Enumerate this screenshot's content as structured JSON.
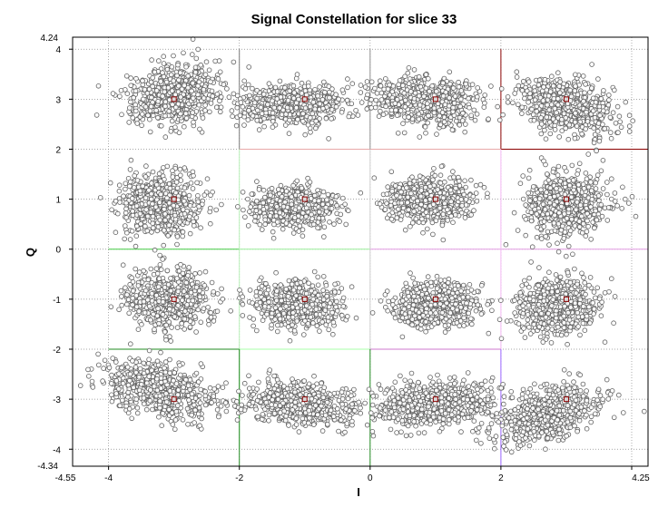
{
  "chart_data": {
    "type": "scatter",
    "title": "Signal Constellation for slice 33",
    "xlabel": "I",
    "ylabel": "Q",
    "xlim": [
      -4.55,
      4.25
    ],
    "ylim": [
      -4.34,
      4.24
    ],
    "xlim_labels": [
      "-4.55",
      "4.25"
    ],
    "ylim_labels": [
      "-4.34",
      "4.24"
    ],
    "xticks": [
      -4,
      -2,
      0,
      2,
      4
    ],
    "xtick_labels": [
      "-4",
      "-2",
      "0",
      "2",
      ""
    ],
    "yticks": [
      -4,
      -3,
      -2,
      -1,
      0,
      1,
      2,
      3,
      4
    ],
    "ytick_labels": [
      "-4",
      "-3",
      "-2",
      "-1",
      "0",
      "1",
      "2",
      "3",
      "4"
    ],
    "grid": true,
    "reference_points": {
      "i": [
        -3,
        -1,
        1,
        3
      ],
      "q": [
        -3,
        -1,
        1,
        3
      ],
      "color": "#8b0000"
    },
    "clusters": [
      {
        "i": -3.0,
        "q": 3.0,
        "spread_i": 0.35,
        "spread_q": 0.28,
        "rot": 0.35,
        "offset_i": 0.0,
        "offset_q": 0.1
      },
      {
        "i": -1.0,
        "q": 3.0,
        "spread_i": 0.38,
        "spread_q": 0.2,
        "rot": 0.05,
        "offset_i": -0.2,
        "offset_q": -0.1
      },
      {
        "i": 1.0,
        "q": 3.0,
        "spread_i": 0.38,
        "spread_q": 0.22,
        "rot": -0.15,
        "offset_i": -0.1,
        "offset_q": -0.05
      },
      {
        "i": 3.0,
        "q": 3.0,
        "spread_i": 0.38,
        "spread_q": 0.24,
        "rot": -0.45,
        "offset_i": 0.0,
        "offset_q": -0.15
      },
      {
        "i": -3.0,
        "q": 1.0,
        "spread_i": 0.3,
        "spread_q": 0.3,
        "rot": 0.2,
        "offset_i": -0.2,
        "offset_q": -0.1
      },
      {
        "i": -1.0,
        "q": 1.0,
        "spread_i": 0.3,
        "spread_q": 0.2,
        "rot": 0.0,
        "offset_i": -0.15,
        "offset_q": -0.15
      },
      {
        "i": 1.0,
        "q": 1.0,
        "spread_i": 0.32,
        "spread_q": 0.22,
        "rot": -0.05,
        "offset_i": -0.1,
        "offset_q": 0.0
      },
      {
        "i": 3.0,
        "q": 1.0,
        "spread_i": 0.3,
        "spread_q": 0.32,
        "rot": -0.2,
        "offset_i": 0.0,
        "offset_q": -0.1
      },
      {
        "i": -3.0,
        "q": -1.0,
        "spread_i": 0.3,
        "spread_q": 0.28,
        "rot": 0.1,
        "offset_i": -0.1,
        "offset_q": 0.0
      },
      {
        "i": -1.0,
        "q": -1.0,
        "spread_i": 0.32,
        "spread_q": 0.22,
        "rot": 0.0,
        "offset_i": -0.1,
        "offset_q": -0.1
      },
      {
        "i": 1.0,
        "q": -1.0,
        "spread_i": 0.3,
        "spread_q": 0.22,
        "rot": 0.15,
        "offset_i": 0.0,
        "offset_q": -0.1
      },
      {
        "i": 3.0,
        "q": -1.0,
        "spread_i": 0.3,
        "spread_q": 0.28,
        "rot": 0.25,
        "offset_i": -0.15,
        "offset_q": -0.1
      },
      {
        "i": -3.0,
        "q": -3.0,
        "spread_i": 0.42,
        "spread_q": 0.25,
        "rot": -0.45,
        "offset_i": -0.25,
        "offset_q": 0.2
      },
      {
        "i": -1.0,
        "q": -3.0,
        "spread_i": 0.42,
        "spread_q": 0.2,
        "rot": -0.12,
        "offset_i": -0.1,
        "offset_q": -0.1
      },
      {
        "i": 1.0,
        "q": -3.0,
        "spread_i": 0.42,
        "spread_q": 0.2,
        "rot": 0.08,
        "offset_i": 0.0,
        "offset_q": -0.1
      },
      {
        "i": 3.0,
        "q": -3.0,
        "spread_i": 0.42,
        "spread_q": 0.25,
        "rot": 0.45,
        "offset_i": -0.3,
        "offset_q": -0.3
      }
    ],
    "points_per_cluster": 650,
    "marker_color": "#5f5f5f",
    "decision_boundaries": [
      {
        "x1": 2,
        "y1": 4,
        "x2": 2,
        "y2": 2,
        "color": "#8b0000"
      },
      {
        "x1": 2,
        "y1": 2,
        "x2": 4.25,
        "y2": 2,
        "color": "#8b0000"
      },
      {
        "x1": -2,
        "y1": 4,
        "x2": -2,
        "y2": 2,
        "color": "#7a7a7a"
      },
      {
        "x1": -2,
        "y1": 2,
        "x2": 2,
        "y2": 2,
        "color": "#e8a8a8"
      },
      {
        "x1": 0,
        "y1": 4,
        "x2": 0,
        "y2": 2,
        "color": "#8f8f8f"
      },
      {
        "x1": -4,
        "y1": 0,
        "x2": -2,
        "y2": 0,
        "color": "#44cc44"
      },
      {
        "x1": -2,
        "y1": 0,
        "x2": 0,
        "y2": 0,
        "color": "#99ee99"
      },
      {
        "x1": 0,
        "y1": 0,
        "x2": 4.25,
        "y2": 0,
        "color": "#e39ce3"
      },
      {
        "x1": -2,
        "y1": 2,
        "x2": -2,
        "y2": -4,
        "color": "#b8f0b8"
      },
      {
        "x1": 0,
        "y1": 2,
        "x2": 0,
        "y2": -2,
        "color": "#cfcfcf"
      },
      {
        "x1": 2,
        "y1": 2,
        "x2": 2,
        "y2": -2,
        "color": "#f2b8f2"
      },
      {
        "x1": -4,
        "y1": -2,
        "x2": -2,
        "y2": -2,
        "color": "#228b22"
      },
      {
        "x1": -2,
        "y1": -2,
        "x2": 0,
        "y2": -2,
        "color": "#aaffaa"
      },
      {
        "x1": 0,
        "y1": -2,
        "x2": 2,
        "y2": -2,
        "color": "#cc77cc"
      },
      {
        "x1": -2,
        "y1": -2,
        "x2": -2,
        "y2": -4.34,
        "color": "#228b22"
      },
      {
        "x1": 0,
        "y1": -2,
        "x2": 0,
        "y2": -4.34,
        "color": "#228b22"
      },
      {
        "x1": 2,
        "y1": -2,
        "x2": 2,
        "y2": -4.34,
        "color": "#9966ff"
      }
    ]
  }
}
